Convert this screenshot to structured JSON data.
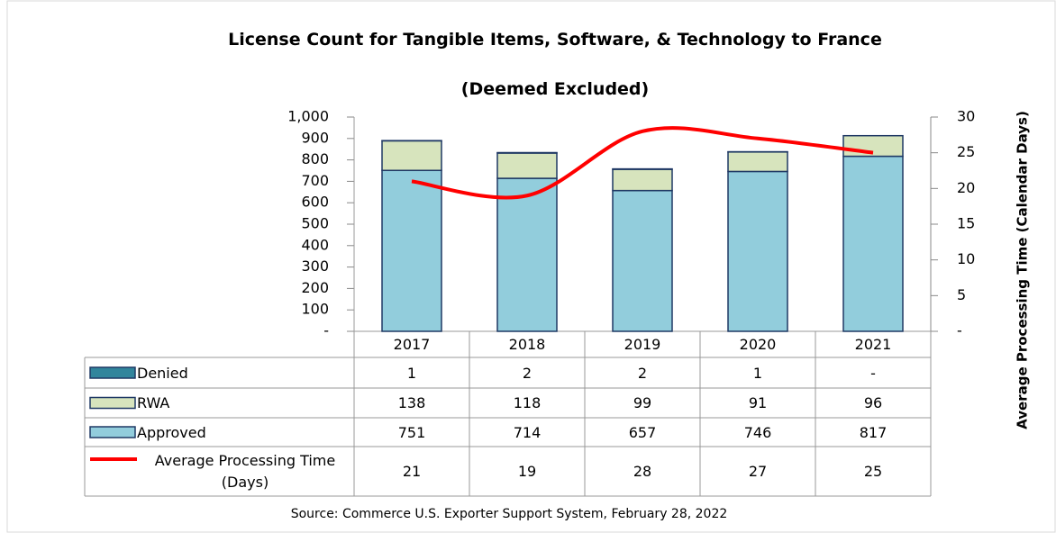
{
  "chart_data": {
    "type": "bar",
    "title": "License Count for Tangible Items, Software, & Technology to France",
    "subtitle": "(Deemed Excluded)",
    "categories": [
      "2017",
      "2018",
      "2019",
      "2020",
      "2021"
    ],
    "series": [
      {
        "name": "Denied",
        "color": "#31859c",
        "values": [
          1,
          2,
          2,
          1,
          0
        ],
        "value_labels": [
          "1",
          "2",
          "2",
          "1",
          "-"
        ]
      },
      {
        "name": "RWA",
        "color": "#d7e4bd",
        "values": [
          138,
          118,
          99,
          91,
          96
        ]
      },
      {
        "name": "Approved",
        "color": "#92cddc",
        "values": [
          751,
          714,
          657,
          746,
          817
        ]
      },
      {
        "name": "Average Processing Time (Days)",
        "type": "line",
        "axis": "y2",
        "color": "#ff0000",
        "values": [
          21,
          19,
          28,
          27,
          25
        ]
      }
    ],
    "ylim": [
      0,
      1000
    ],
    "yticks": [
      {
        "value": 0,
        "label": "-"
      },
      100,
      200,
      300,
      400,
      500,
      600,
      700,
      800,
      900,
      {
        "value": 1000,
        "label": "1,000"
      }
    ],
    "y2lim": [
      0,
      30
    ],
    "y2ticks": [
      {
        "value": 0,
        "label": "-"
      },
      5,
      10,
      15,
      20,
      25,
      30
    ],
    "y2_label": "Average Processing Time (Calendar Days)",
    "source": "Source: Commerce U.S. Exporter Support System, February 28, 2022"
  }
}
